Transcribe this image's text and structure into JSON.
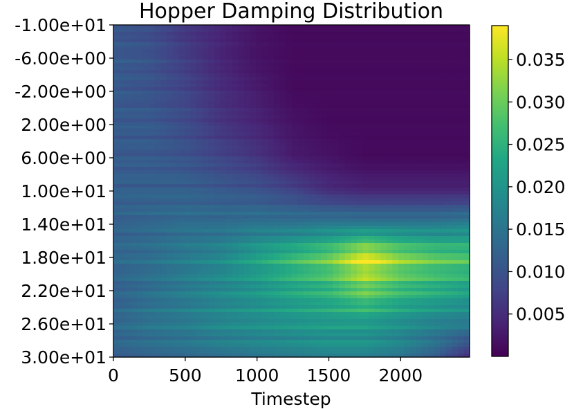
{
  "chart_data": {
    "type": "heatmap",
    "title": "Hopper Damping Distribution",
    "xlabel": "Timestep",
    "ylabel": "",
    "colormap": "viridis",
    "xlim": [
      0,
      2480
    ],
    "ylim": [
      -10.0,
      30.0
    ],
    "y_inverted": true,
    "x_ticks": [
      0,
      500,
      1000,
      1500,
      2000
    ],
    "x_tick_labels": [
      "0",
      "500",
      "1000",
      "1500",
      "2000"
    ],
    "y_ticks": [
      -10,
      -6,
      -2,
      2,
      6,
      10,
      14,
      18,
      22,
      26,
      30
    ],
    "y_tick_labels": [
      "-1.00e+01",
      "-6.00e+00",
      "-2.00e+00",
      "2.00e+00",
      "6.00e+00",
      "1.00e+01",
      "1.40e+01",
      "1.80e+01",
      "2.20e+01",
      "2.60e+01",
      "3.00e+01"
    ],
    "colorbar": {
      "range": [
        0.0,
        0.039
      ],
      "ticks": [
        0.005,
        0.01,
        0.015,
        0.02,
        0.025,
        0.03,
        0.035
      ],
      "tick_labels": [
        "0.005",
        "0.010",
        "0.015",
        "0.020",
        "0.025",
        "0.030",
        "0.035"
      ]
    },
    "value_grid": {
      "timesteps": [
        0,
        250,
        500,
        750,
        1000,
        1250,
        1500,
        1750,
        2000,
        2250,
        2480
      ],
      "y_values": [
        -10,
        -6,
        -2,
        2,
        6,
        10,
        14,
        18,
        22,
        26,
        30
      ],
      "rows": [
        [
          0.01,
          0.009,
          0.006,
          0.004,
          0.002,
          0.001,
          0.001,
          0.001,
          0.001,
          0.001,
          0.001
        ],
        [
          0.011,
          0.01,
          0.007,
          0.004,
          0.002,
          0.001,
          0.001,
          0.001,
          0.001,
          0.001,
          0.001
        ],
        [
          0.011,
          0.01,
          0.008,
          0.005,
          0.003,
          0.001,
          0.001,
          0.001,
          0.001,
          0.001,
          0.001
        ],
        [
          0.011,
          0.011,
          0.009,
          0.006,
          0.004,
          0.002,
          0.001,
          0.001,
          0.001,
          0.001,
          0.001
        ],
        [
          0.011,
          0.011,
          0.01,
          0.008,
          0.006,
          0.003,
          0.002,
          0.001,
          0.001,
          0.001,
          0.001
        ],
        [
          0.012,
          0.012,
          0.012,
          0.011,
          0.01,
          0.008,
          0.005,
          0.004,
          0.004,
          0.004,
          0.004
        ],
        [
          0.012,
          0.013,
          0.014,
          0.014,
          0.015,
          0.015,
          0.016,
          0.016,
          0.016,
          0.016,
          0.017
        ],
        [
          0.013,
          0.014,
          0.016,
          0.018,
          0.022,
          0.026,
          0.03,
          0.038,
          0.032,
          0.029,
          0.028
        ],
        [
          0.012,
          0.014,
          0.016,
          0.018,
          0.02,
          0.023,
          0.025,
          0.03,
          0.026,
          0.024,
          0.022
        ],
        [
          0.013,
          0.015,
          0.016,
          0.018,
          0.019,
          0.02,
          0.021,
          0.021,
          0.019,
          0.017,
          0.016
        ],
        [
          0.012,
          0.013,
          0.014,
          0.015,
          0.016,
          0.017,
          0.018,
          0.018,
          0.016,
          0.012,
          0.005
        ]
      ]
    }
  }
}
